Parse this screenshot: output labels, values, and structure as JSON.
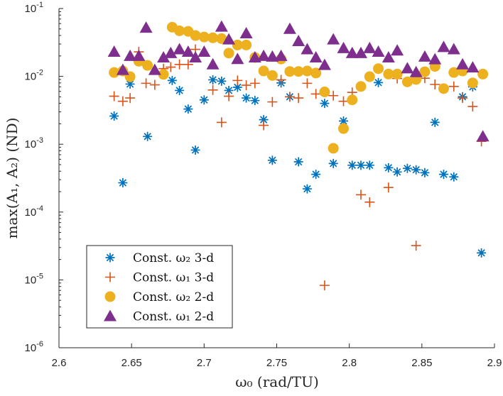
{
  "chart_data": {
    "type": "scatter",
    "title": "",
    "xlabel": "ω₀ (rad/TU)",
    "ylabel": "max(A₁, A₂) (ND)",
    "xlim": [
      2.6,
      2.9
    ],
    "ylim": [
      1e-06,
      0.1
    ],
    "yscale": "log",
    "grid": false,
    "legend_position": "bottom-left",
    "x_ticks": [
      "2.6",
      "2.65",
      "2.7",
      "2.75",
      "2.8",
      "2.85",
      "2.9"
    ],
    "y_ticks": [
      {
        "base": "10",
        "exp": "-6"
      },
      {
        "base": "10",
        "exp": "-5"
      },
      {
        "base": "10",
        "exp": "-4"
      },
      {
        "base": "10",
        "exp": "-3"
      },
      {
        "base": "10",
        "exp": "-2"
      },
      {
        "base": "10",
        "exp": "-1"
      }
    ],
    "series": [
      {
        "name": "Const. ω₂ 3-d",
        "marker": "star",
        "color": "#0072BD",
        "points": [
          [
            2.638,
            0.0026
          ],
          [
            2.644,
            0.00027
          ],
          [
            2.649,
            0.0077
          ],
          [
            2.661,
            0.0013
          ],
          [
            2.678,
            0.0087
          ],
          [
            2.683,
            0.0062
          ],
          [
            2.689,
            0.0033
          ],
          [
            2.694,
            0.00082
          ],
          [
            2.7,
            0.0045
          ],
          [
            2.706,
            0.0089
          ],
          [
            2.712,
            0.0085
          ],
          [
            2.717,
            0.0062
          ],
          [
            2.723,
            0.0069
          ],
          [
            2.729,
            0.0048
          ],
          [
            2.735,
            0.0044
          ],
          [
            2.741,
            0.0023
          ],
          [
            2.747,
            0.00058
          ],
          [
            2.753,
            0.008
          ],
          [
            2.759,
            0.005
          ],
          [
            2.765,
            0.00055
          ],
          [
            2.771,
            0.00022
          ],
          [
            2.777,
            0.00036
          ],
          [
            2.783,
            0.004
          ],
          [
            2.789,
            0.00052
          ],
          [
            2.796,
            0.0022
          ],
          [
            2.802,
            0.00049
          ],
          [
            2.808,
            0.00049
          ],
          [
            2.814,
            0.00049
          ],
          [
            2.82,
            0.0081
          ],
          [
            2.827,
            0.00045
          ],
          [
            2.833,
            0.00039
          ],
          [
            2.84,
            0.00044
          ],
          [
            2.846,
            0.00042
          ],
          [
            2.852,
            0.00038
          ],
          [
            2.859,
            0.0021
          ],
          [
            2.865,
            0.00036
          ],
          [
            2.872,
            0.00033
          ],
          [
            2.878,
            0.005
          ],
          [
            2.885,
            0.007
          ],
          [
            2.891,
            2.5e-05
          ]
        ]
      },
      {
        "name": "Const. ω₁ 3-d",
        "marker": "plus",
        "color": "#D95319",
        "points": [
          [
            2.638,
            0.0051
          ],
          [
            2.644,
            0.0043
          ],
          [
            2.649,
            0.0048
          ],
          [
            2.655,
            0.023
          ],
          [
            2.66,
            0.0079
          ],
          [
            2.666,
            0.0075
          ],
          [
            2.672,
            0.013
          ],
          [
            2.677,
            0.0137
          ],
          [
            2.683,
            0.015
          ],
          [
            2.689,
            0.015
          ],
          [
            2.694,
            0.025
          ],
          [
            2.706,
            0.0063
          ],
          [
            2.712,
            0.0021
          ],
          [
            2.717,
            0.0051
          ],
          [
            2.723,
            0.0087
          ],
          [
            2.729,
            0.0074
          ],
          [
            2.735,
            0.0079
          ],
          [
            2.741,
            0.0019
          ],
          [
            2.747,
            0.0042
          ],
          [
            2.753,
            0.0089
          ],
          [
            2.759,
            0.005
          ],
          [
            2.765,
            0.0048
          ],
          [
            2.771,
            0.0079
          ],
          [
            2.777,
            0.0055
          ],
          [
            2.783,
            8.3e-06
          ],
          [
            2.789,
            0.0052
          ],
          [
            2.796,
            0.0043
          ],
          [
            2.802,
            0.0058
          ],
          [
            2.808,
            0.00018
          ],
          [
            2.814,
            0.00014
          ],
          [
            2.827,
            0.00023
          ],
          [
            2.833,
            0.0093
          ],
          [
            2.846,
            3.2e-05
          ],
          [
            2.852,
            0.0094
          ],
          [
            2.859,
            0.0076
          ],
          [
            2.872,
            0.0071
          ],
          [
            2.878,
            0.0048
          ],
          [
            2.885,
            0.0036
          ],
          [
            2.891,
            0.0011
          ]
        ]
      },
      {
        "name": "Const. ω₂ 2-d",
        "marker": "circle",
        "color": "#EDB120",
        "points": [
          [
            2.638,
            0.0114
          ],
          [
            2.644,
            0.012
          ],
          [
            2.649,
            0.0099
          ],
          [
            2.655,
            0.0167
          ],
          [
            2.661,
            0.0145
          ],
          [
            2.672,
            0.0107
          ],
          [
            2.678,
            0.053
          ],
          [
            2.683,
            0.047
          ],
          [
            2.689,
            0.046
          ],
          [
            2.694,
            0.04
          ],
          [
            2.7,
            0.038
          ],
          [
            2.706,
            0.037
          ],
          [
            2.712,
            0.036
          ],
          [
            2.717,
            0.022
          ],
          [
            2.723,
            0.029
          ],
          [
            2.729,
            0.029
          ],
          [
            2.735,
            0.019
          ],
          [
            2.741,
            0.012
          ],
          [
            2.747,
            0.0103
          ],
          [
            2.753,
            0.018
          ],
          [
            2.759,
            0.0118
          ],
          [
            2.765,
            0.0118
          ],
          [
            2.771,
            0.012
          ],
          [
            2.777,
            0.0112
          ],
          [
            2.783,
            0.0059
          ],
          [
            2.789,
            0.00087
          ],
          [
            2.796,
            0.0017
          ],
          [
            2.802,
            0.0045
          ],
          [
            2.808,
            0.0071
          ],
          [
            2.814,
            0.0099
          ],
          [
            2.82,
            0.013
          ],
          [
            2.827,
            0.0108
          ],
          [
            2.833,
            0.0108
          ],
          [
            2.84,
            0.0083
          ],
          [
            2.846,
            0.009
          ],
          [
            2.852,
            0.0117
          ],
          [
            2.859,
            0.014
          ],
          [
            2.865,
            0.0066
          ],
          [
            2.872,
            0.0114
          ],
          [
            2.878,
            0.012
          ],
          [
            2.885,
            0.008
          ],
          [
            2.892,
            0.0108
          ]
        ]
      },
      {
        "name": "Const. ω₁ 2-d",
        "marker": "triangle",
        "color": "#7E2F8E",
        "points": [
          [
            2.638,
            0.023
          ],
          [
            2.644,
            0.0124
          ],
          [
            2.649,
            0.02
          ],
          [
            2.655,
            0.02
          ],
          [
            2.66,
            0.052
          ],
          [
            2.666,
            0.0124
          ],
          [
            2.672,
            0.019
          ],
          [
            2.677,
            0.022
          ],
          [
            2.683,
            0.025
          ],
          [
            2.689,
            0.023
          ],
          [
            2.694,
            0.019
          ],
          [
            2.7,
            0.023
          ],
          [
            2.706,
            0.015
          ],
          [
            2.712,
            0.054
          ],
          [
            2.717,
            0.035
          ],
          [
            2.723,
            0.018
          ],
          [
            2.729,
            0.043
          ],
          [
            2.735,
            0.019
          ],
          [
            2.741,
            0.02
          ],
          [
            2.747,
            0.0195
          ],
          [
            2.753,
            0.02
          ],
          [
            2.759,
            0.05
          ],
          [
            2.765,
            0.033
          ],
          [
            2.771,
            0.025
          ],
          [
            2.777,
            0.019
          ],
          [
            2.783,
            0.0147
          ],
          [
            2.789,
            0.035
          ],
          [
            2.796,
            0.026
          ],
          [
            2.802,
            0.022
          ],
          [
            2.808,
            0.022
          ],
          [
            2.814,
            0.026
          ],
          [
            2.82,
            0.023
          ],
          [
            2.827,
            0.019
          ],
          [
            2.833,
            0.024
          ],
          [
            2.84,
            0.0131
          ],
          [
            2.846,
            0.0115
          ],
          [
            2.852,
            0.0195
          ],
          [
            2.859,
            0.0178
          ],
          [
            2.865,
            0.027
          ],
          [
            2.872,
            0.025
          ],
          [
            2.878,
            0.015
          ],
          [
            2.885,
            0.0135
          ],
          [
            2.892,
            0.0013
          ]
        ]
      }
    ]
  }
}
